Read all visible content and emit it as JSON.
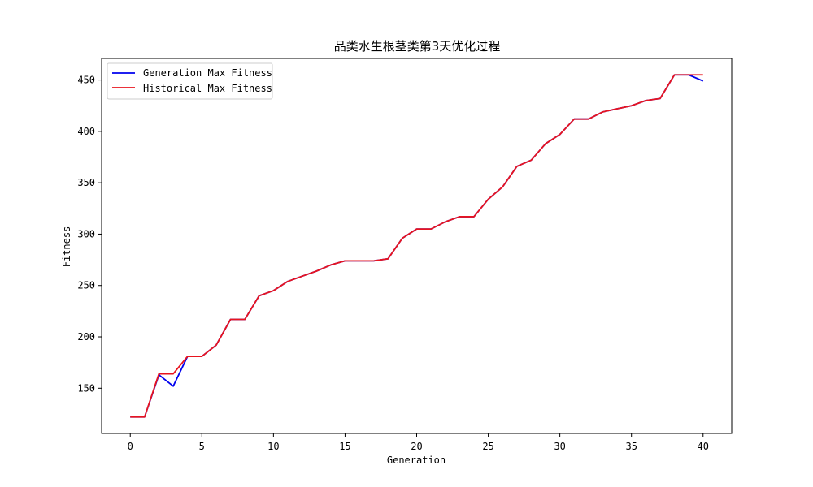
{
  "chart_data": {
    "type": "line",
    "title": "品类水生根茎类第3天优化过程",
    "xlabel": "Generation",
    "ylabel": "Fitness",
    "xlim": [
      -2,
      42
    ],
    "ylim": [
      106,
      471
    ],
    "xticks": [
      0,
      5,
      10,
      15,
      20,
      25,
      30,
      35,
      40
    ],
    "yticks": [
      150,
      200,
      250,
      300,
      350,
      400,
      450
    ],
    "grid": false,
    "legend_position": "top-left",
    "x": [
      0,
      1,
      2,
      3,
      4,
      5,
      6,
      7,
      8,
      9,
      10,
      11,
      12,
      13,
      14,
      15,
      16,
      17,
      18,
      19,
      20,
      21,
      22,
      23,
      24,
      25,
      26,
      27,
      28,
      29,
      30,
      31,
      32,
      33,
      34,
      35,
      36,
      37,
      38,
      39,
      40
    ],
    "series": [
      {
        "name": "Generation Max Fitness",
        "color": "#0000ee",
        "values": [
          122,
          122,
          163,
          152,
          181,
          181,
          192,
          217,
          217,
          240,
          245,
          254,
          259,
          264,
          270,
          274,
          274,
          274,
          276,
          296,
          305,
          305,
          312,
          317,
          317,
          334,
          346,
          366,
          372,
          388,
          397,
          412,
          412,
          419,
          422,
          425,
          430,
          432,
          455,
          455,
          449
        ]
      },
      {
        "name": "Historical Max Fitness",
        "color": "#e8141e",
        "values": [
          122,
          122,
          164,
          164,
          181,
          181,
          192,
          217,
          217,
          240,
          245,
          254,
          259,
          264,
          270,
          274,
          274,
          274,
          276,
          296,
          305,
          305,
          312,
          317,
          317,
          334,
          346,
          366,
          372,
          388,
          397,
          412,
          412,
          419,
          422,
          425,
          430,
          432,
          455,
          455,
          455
        ]
      }
    ]
  }
}
